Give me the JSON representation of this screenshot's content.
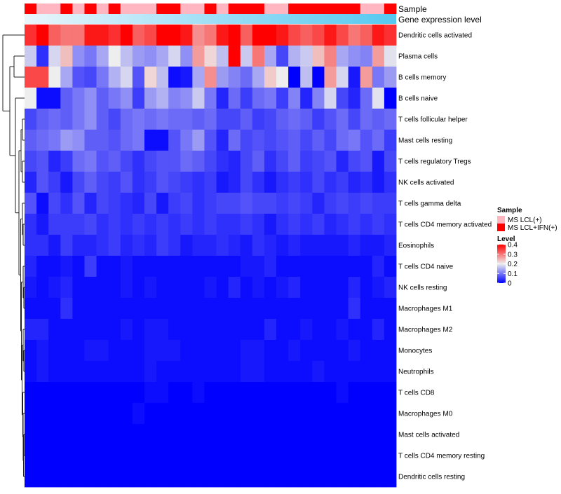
{
  "chart_data": {
    "type": "heatmap",
    "annotation_tracks": [
      {
        "name": "Sample",
        "kind": "categorical"
      },
      {
        "name": "Gene expression level",
        "kind": "gradient"
      }
    ],
    "rows": [
      "Dendritic cells activated",
      "Plasma cells",
      "B cells memory",
      "B cells naive",
      "T cells follicular helper",
      "Mast cells resting",
      "T cells regulatory  Tregs",
      "NK cells activated",
      "T cells gamma delta",
      "T cells CD4 memory activated",
      "Eosinophils",
      "T cells CD4 naive",
      "NK cells resting",
      "Macrophages M1",
      "Macrophages M2",
      "Monocytes",
      "Neutrophils",
      "T cells CD8",
      "Macrophages M0",
      "Mast cells activated",
      "T cells CD4 memory resting",
      "Dendritic cells resting"
    ],
    "sample_groups": [
      1,
      0,
      0,
      1,
      0,
      1,
      0,
      1,
      0,
      0,
      0,
      1,
      1,
      0,
      0,
      1,
      0,
      1,
      1,
      1,
      0,
      0,
      1,
      1,
      1,
      1,
      1,
      1,
      0,
      0,
      1
    ],
    "values": [
      [
        0.36,
        0.4,
        0.32,
        0.3,
        0.3,
        0.38,
        0.38,
        0.36,
        0.4,
        0.32,
        0.34,
        0.4,
        0.4,
        0.38,
        0.28,
        0.3,
        0.38,
        0.4,
        0.32,
        0.4,
        0.4,
        0.38,
        0.34,
        0.32,
        0.34,
        0.38,
        0.34,
        0.3,
        0.32,
        0.38,
        0.36
      ],
      [
        0.17,
        0.04,
        0.18,
        0.24,
        0.12,
        0.1,
        0.14,
        0.2,
        0.16,
        0.13,
        0.12,
        0.14,
        0.18,
        0.12,
        0.27,
        0.22,
        0.16,
        0.4,
        0.17,
        0.3,
        0.14,
        0.06,
        0.15,
        0.17,
        0.24,
        0.29,
        0.14,
        0.12,
        0.11,
        0.27,
        0.19
      ],
      [
        0.34,
        0.34,
        0.2,
        0.14,
        0.07,
        0.06,
        0.1,
        0.15,
        0.18,
        0.07,
        0.22,
        0.16,
        0.01,
        0.02,
        0.14,
        0.28,
        0.13,
        0.11,
        0.09,
        0.14,
        0.23,
        0.2,
        0.0,
        0.16,
        0.0,
        0.27,
        0.18,
        0.02,
        0.27,
        0.1,
        0.13
      ],
      [
        0.2,
        0.01,
        0.01,
        0.08,
        0.1,
        0.12,
        0.08,
        0.1,
        0.12,
        0.05,
        0.13,
        0.15,
        0.11,
        0.12,
        0.17,
        0.1,
        0.03,
        0.09,
        0.05,
        0.09,
        0.1,
        0.05,
        0.11,
        0.03,
        0.11,
        0.18,
        0.06,
        0.03,
        0.09,
        0.19,
        0.0
      ],
      [
        0.06,
        0.08,
        0.09,
        0.08,
        0.1,
        0.12,
        0.08,
        0.06,
        0.09,
        0.1,
        0.09,
        0.1,
        0.09,
        0.09,
        0.08,
        0.09,
        0.06,
        0.06,
        0.08,
        0.05,
        0.06,
        0.08,
        0.09,
        0.08,
        0.05,
        0.07,
        0.09,
        0.06,
        0.09,
        0.08,
        0.09
      ],
      [
        0.08,
        0.09,
        0.1,
        0.13,
        0.12,
        0.08,
        0.08,
        0.07,
        0.09,
        0.1,
        0.01,
        0.01,
        0.07,
        0.1,
        0.13,
        0.07,
        0.03,
        0.09,
        0.06,
        0.07,
        0.06,
        0.07,
        0.08,
        0.06,
        0.08,
        0.06,
        0.09,
        0.1,
        0.07,
        0.09,
        0.05
      ],
      [
        0.06,
        0.07,
        0.03,
        0.05,
        0.09,
        0.1,
        0.07,
        0.08,
        0.06,
        0.04,
        0.06,
        0.07,
        0.07,
        0.09,
        0.08,
        0.06,
        0.04,
        0.03,
        0.06,
        0.08,
        0.04,
        0.06,
        0.08,
        0.05,
        0.06,
        0.07,
        0.03,
        0.06,
        0.07,
        0.02,
        0.06
      ],
      [
        0.03,
        0.07,
        0.05,
        0.02,
        0.06,
        0.08,
        0.06,
        0.05,
        0.07,
        0.04,
        0.05,
        0.07,
        0.06,
        0.05,
        0.04,
        0.05,
        0.02,
        0.03,
        0.06,
        0.04,
        0.02,
        0.04,
        0.05,
        0.04,
        0.06,
        0.04,
        0.05,
        0.03,
        0.04,
        0.02,
        0.04
      ],
      [
        0.07,
        0.01,
        0.06,
        0.04,
        0.07,
        0.03,
        0.06,
        0.05,
        0.04,
        0.03,
        0.06,
        0.02,
        0.05,
        0.06,
        0.04,
        0.05,
        0.06,
        0.06,
        0.07,
        0.06,
        0.06,
        0.05,
        0.06,
        0.05,
        0.03,
        0.05,
        0.06,
        0.05,
        0.06,
        0.05,
        0.05
      ],
      [
        0.04,
        0.02,
        0.05,
        0.05,
        0.05,
        0.06,
        0.04,
        0.05,
        0.04,
        0.05,
        0.04,
        0.05,
        0.04,
        0.05,
        0.04,
        0.05,
        0.04,
        0.04,
        0.05,
        0.04,
        0.02,
        0.04,
        0.05,
        0.04,
        0.05,
        0.03,
        0.04,
        0.05,
        0.04,
        0.05,
        0.04
      ],
      [
        0.04,
        0.04,
        0.02,
        0.05,
        0.03,
        0.03,
        0.04,
        0.05,
        0.03,
        0.04,
        0.03,
        0.05,
        0.04,
        0.02,
        0.03,
        0.03,
        0.04,
        0.03,
        0.02,
        0.04,
        0.03,
        0.02,
        0.03,
        0.02,
        0.02,
        0.02,
        0.02,
        0.03,
        0.02,
        0.02,
        0.03
      ],
      [
        0.03,
        0.01,
        0.01,
        0.02,
        0.01,
        0.05,
        0.01,
        0.01,
        0.02,
        0.01,
        0.01,
        0.01,
        0.01,
        0.01,
        0.01,
        0.01,
        0.01,
        0.01,
        0.02,
        0.02,
        0.03,
        0.01,
        0.01,
        0.01,
        0.01,
        0.01,
        0.01,
        0.01,
        0.01,
        0.03,
        0.01
      ],
      [
        0.02,
        0.01,
        0.02,
        0.03,
        0.01,
        0.01,
        0.01,
        0.01,
        0.02,
        0.01,
        0.02,
        0.01,
        0.01,
        0.01,
        0.01,
        0.02,
        0.01,
        0.03,
        0.01,
        0.02,
        0.01,
        0.02,
        0.03,
        0.01,
        0.01,
        0.01,
        0.01,
        0.03,
        0.01,
        0.02,
        0.03
      ],
      [
        0.01,
        0.01,
        0.01,
        0.04,
        0.01,
        0.01,
        0.01,
        0.01,
        0.01,
        0.01,
        0.01,
        0.01,
        0.01,
        0.01,
        0.01,
        0.01,
        0.01,
        0.01,
        0.01,
        0.01,
        0.01,
        0.01,
        0.01,
        0.01,
        0.01,
        0.01,
        0.01,
        0.04,
        0.01,
        0.01,
        0.01
      ],
      [
        0.03,
        0.03,
        0.01,
        0.01,
        0.01,
        0.01,
        0.01,
        0.01,
        0.02,
        0.01,
        0.02,
        0.02,
        0.01,
        0.01,
        0.01,
        0.01,
        0.01,
        0.01,
        0.01,
        0.01,
        0.03,
        0.01,
        0.01,
        0.02,
        0.01,
        0.01,
        0.02,
        0.01,
        0.01,
        0.03,
        0.01
      ],
      [
        0.01,
        0.02,
        0.01,
        0.01,
        0.01,
        0.02,
        0.02,
        0.01,
        0.01,
        0.01,
        0.02,
        0.02,
        0.02,
        0.01,
        0.01,
        0.01,
        0.01,
        0.01,
        0.02,
        0.02,
        0.01,
        0.01,
        0.02,
        0.01,
        0.01,
        0.01,
        0.01,
        0.02,
        0.01,
        0.01,
        0.01
      ],
      [
        0.01,
        0.02,
        0.01,
        0.01,
        0.01,
        0.01,
        0.01,
        0.01,
        0.01,
        0.01,
        0.02,
        0.01,
        0.01,
        0.01,
        0.01,
        0.01,
        0.01,
        0.01,
        0.02,
        0.02,
        0.01,
        0.01,
        0.01,
        0.01,
        0.02,
        0.01,
        0.01,
        0.01,
        0.01,
        0.01,
        0.01
      ],
      [
        0.0,
        0.0,
        0.0,
        0.0,
        0.0,
        0.0,
        0.0,
        0.0,
        0.0,
        0.0,
        0.01,
        0.01,
        0.0,
        0.0,
        0.01,
        0.0,
        0.0,
        0.0,
        0.0,
        0.0,
        0.0,
        0.0,
        0.0,
        0.0,
        0.0,
        0.0,
        0.01,
        0.0,
        0.0,
        0.0,
        0.0
      ],
      [
        0.0,
        0.0,
        0.0,
        0.0,
        0.0,
        0.0,
        0.0,
        0.0,
        0.0,
        0.01,
        0.0,
        0.0,
        0.0,
        0.0,
        0.0,
        0.0,
        0.0,
        0.0,
        0.0,
        0.0,
        0.0,
        0.0,
        0.0,
        0.0,
        0.0,
        0.0,
        0.0,
        0.0,
        0.0,
        0.0,
        0.0
      ],
      [
        0.0,
        0.0,
        0.0,
        0.0,
        0.0,
        0.0,
        0.0,
        0.0,
        0.0,
        0.0,
        0.0,
        0.0,
        0.0,
        0.0,
        0.0,
        0.0,
        0.0,
        0.0,
        0.0,
        0.0,
        0.0,
        0.0,
        0.0,
        0.0,
        0.0,
        0.0,
        0.0,
        0.0,
        0.0,
        0.0,
        0.0
      ],
      [
        0.0,
        0.0,
        0.0,
        0.0,
        0.0,
        0.0,
        0.0,
        0.0,
        0.0,
        0.0,
        0.0,
        0.0,
        0.0,
        0.0,
        0.0,
        0.0,
        0.0,
        0.0,
        0.0,
        0.0,
        0.0,
        0.0,
        0.0,
        0.0,
        0.0,
        0.0,
        0.0,
        0.0,
        0.0,
        0.0,
        0.0
      ],
      [
        0.0,
        0.0,
        0.0,
        0.0,
        0.0,
        0.0,
        0.0,
        0.0,
        0.0,
        0.0,
        0.0,
        0.0,
        0.0,
        0.0,
        0.0,
        0.0,
        0.0,
        0.0,
        0.0,
        0.0,
        0.0,
        0.0,
        0.0,
        0.0,
        0.0,
        0.0,
        0.0,
        0.0,
        0.0,
        0.0,
        0.0
      ]
    ],
    "legend_sample": {
      "title": "Sample",
      "entries": [
        {
          "label": "MS LCL(+)",
          "color": "#FFB6C1"
        },
        {
          "label": "MS LCL+IFN(+)",
          "color": "#FF0000"
        }
      ]
    },
    "legend_level": {
      "title": "Level",
      "ticks": [
        "0.4",
        "0.3",
        "0.2",
        "0.1",
        "0"
      ],
      "tick_values": [
        0.4,
        0.3,
        0.2,
        0.1,
        0
      ],
      "range": [
        0,
        0.4
      ]
    },
    "color_scale": {
      "low": "#0000FF",
      "mid": "#EEEEEE",
      "high": "#FF0000",
      "mid_value": 0.2
    },
    "gene_expression_gradient": {
      "from": "#EAF6FC",
      "to": "#56C8F0"
    }
  }
}
